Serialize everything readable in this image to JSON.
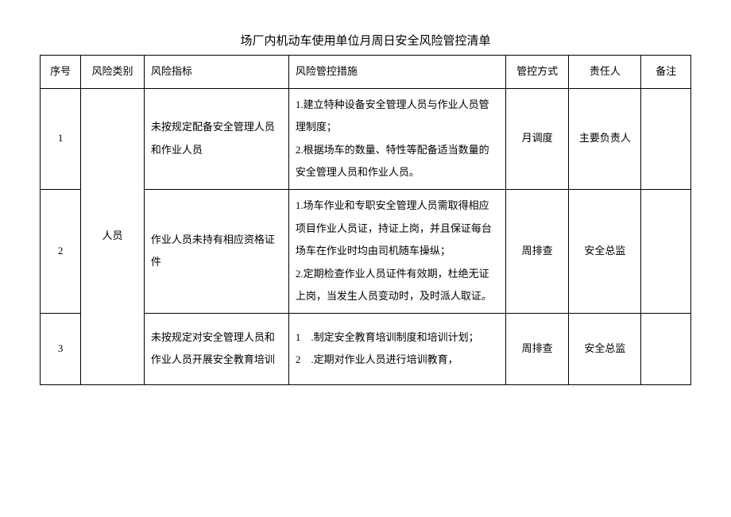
{
  "title": "场厂内机动车使用单位月周日安全风险管控清单",
  "headers": {
    "no": "序号",
    "category": "风险类别",
    "indicator": "风险指标",
    "measure": "风险管控措施",
    "control": "管控方式",
    "responsible": "责任人",
    "note": "备注"
  },
  "category_merged": "人员",
  "rows": [
    {
      "no": "1",
      "indicator": "未按规定配备安全管理人员和作业人员",
      "measure": "1.建立特种设备安全管理人员与作业人员管理制度；\n2.根据场车的数量、特性等配备适当数量的安全管理人员和作业人员。",
      "control": "月调度",
      "responsible": "主要负责人",
      "note": ""
    },
    {
      "no": "2",
      "indicator": "作业人员未持有相应资格证件",
      "measure": "1.场车作业和专职安全管理人员需取得相应项目作业人员证，持证上岗，并且保证每台场车在作业时均由司机随车操纵；\n2.定期检查作业人员证件有效期，杜绝无证上岗，当发生人员变动时，及时派人取证。",
      "control": "周排查",
      "responsible": "安全总监",
      "note": ""
    },
    {
      "no": "3",
      "indicator": "未按规定对安全管理人员和作业人员开展安全教育培训",
      "measure": "1　.制定安全教育培训制度和培训计划；\n2　.定期对作业人员进行培训教育，",
      "control": "周排查",
      "responsible": "安全总监",
      "note": ""
    }
  ]
}
